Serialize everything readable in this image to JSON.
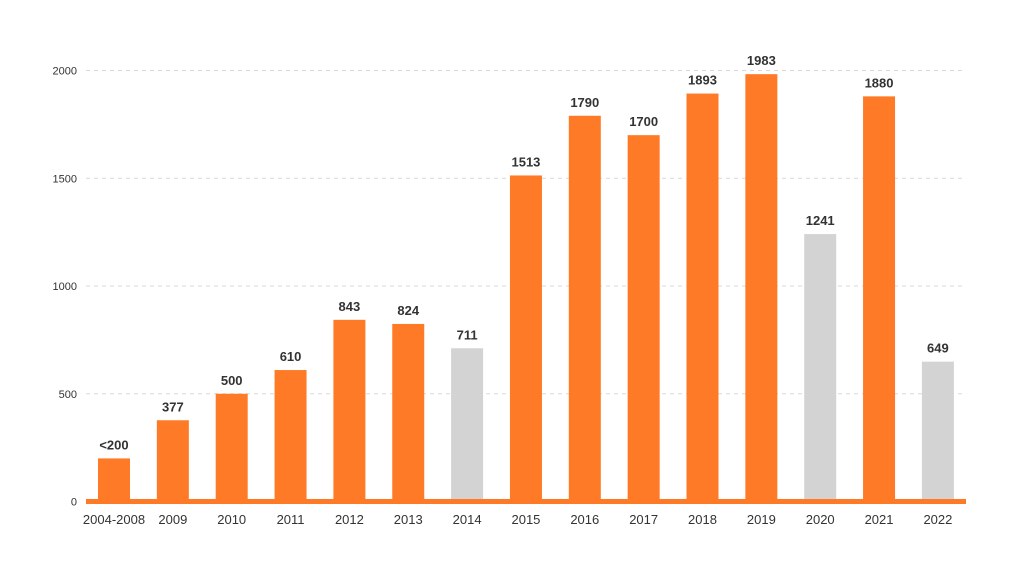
{
  "chart_data": {
    "type": "bar",
    "title": "",
    "xlabel": "",
    "ylabel": "",
    "ylim": [
      0,
      2000
    ],
    "yticks": [
      "0",
      "500",
      "1000",
      "1500",
      "2000"
    ],
    "grid": true,
    "legend": "none",
    "categories": [
      "2004-2008",
      "2009",
      "2010",
      "2011",
      "2012",
      "2013",
      "2014",
      "2015",
      "2016",
      "2017",
      "2018",
      "2019",
      "2020",
      "2021",
      "2022"
    ],
    "values": [
      200,
      377,
      500,
      610,
      843,
      824,
      711,
      1513,
      1790,
      1700,
      1893,
      1983,
      1241,
      1880,
      649
    ],
    "data_labels": [
      "<200",
      "377",
      "500",
      "610",
      "843",
      "824",
      "711",
      "1513",
      "1790",
      "1700",
      "1893",
      "1983",
      "1241",
      "1880",
      "649"
    ],
    "bar_colors": [
      "#ff7a26",
      "#ff7a26",
      "#ff7a26",
      "#ff7a26",
      "#ff7a26",
      "#ff7a26",
      "#d3d3d3",
      "#ff7a26",
      "#ff7a26",
      "#ff7a26",
      "#ff7a26",
      "#ff7a26",
      "#d3d3d3",
      "#ff7a26",
      "#d3d3d3"
    ],
    "colors": {
      "primary": "#ff7a26",
      "muted": "#d3d3d3",
      "axis": "#ff7a26"
    }
  }
}
